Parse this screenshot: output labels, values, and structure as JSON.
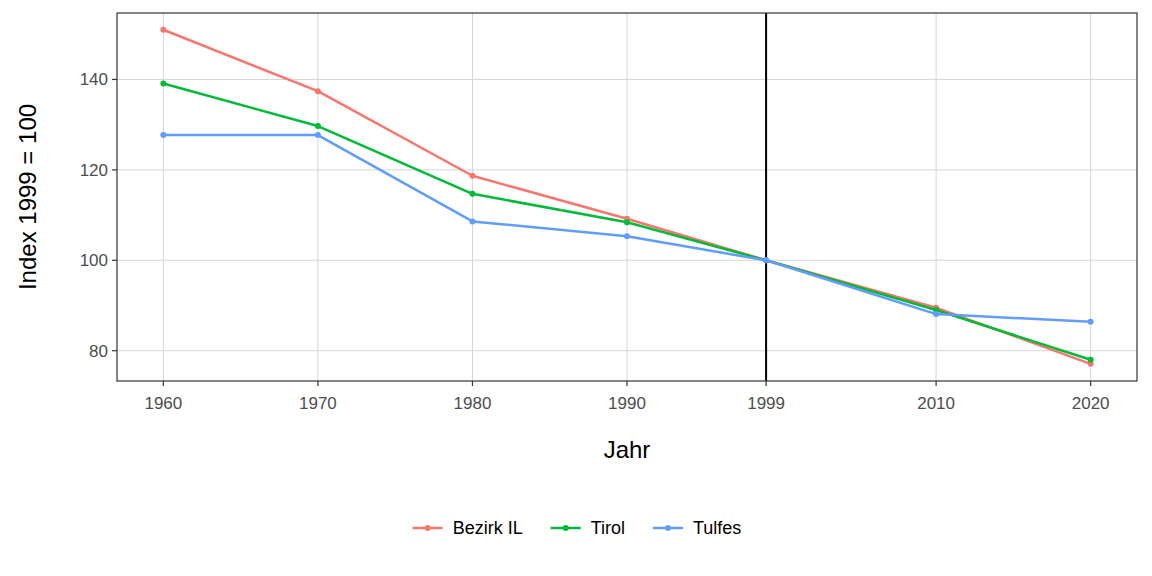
{
  "chart_data": {
    "type": "line",
    "x_label": "Jahr",
    "y_label": "Index 1999 = 100",
    "x": [
      1960,
      1970,
      1980,
      1990,
      1999,
      2010,
      2020
    ],
    "series": [
      {
        "name": "Bezirk IL",
        "color": "#F8766D",
        "marker": "circle",
        "values": [
          151.0,
          137.4,
          118.7,
          109.2,
          100,
          89.5,
          77.1
        ]
      },
      {
        "name": "Tirol",
        "color": "#00BA38",
        "marker": "circle",
        "values": [
          139.1,
          129.7,
          114.7,
          108.4,
          100,
          89.0,
          78.0
        ]
      },
      {
        "name": "Tulfes",
        "color": "#619CFF",
        "marker": "circle",
        "values": [
          127.7,
          127.7,
          108.6,
          105.3,
          100,
          88.1,
          86.4
        ]
      }
    ],
    "xlim": [
      1957,
      2023
    ],
    "xticks": [
      1960,
      1970,
      1980,
      1990,
      1999,
      2010,
      2020
    ],
    "ylim": [
      73.3,
      154.7
    ],
    "yticks": [
      80,
      100,
      120,
      140
    ],
    "vlines": [
      1999
    ],
    "grid": true,
    "legend": "bottom"
  }
}
